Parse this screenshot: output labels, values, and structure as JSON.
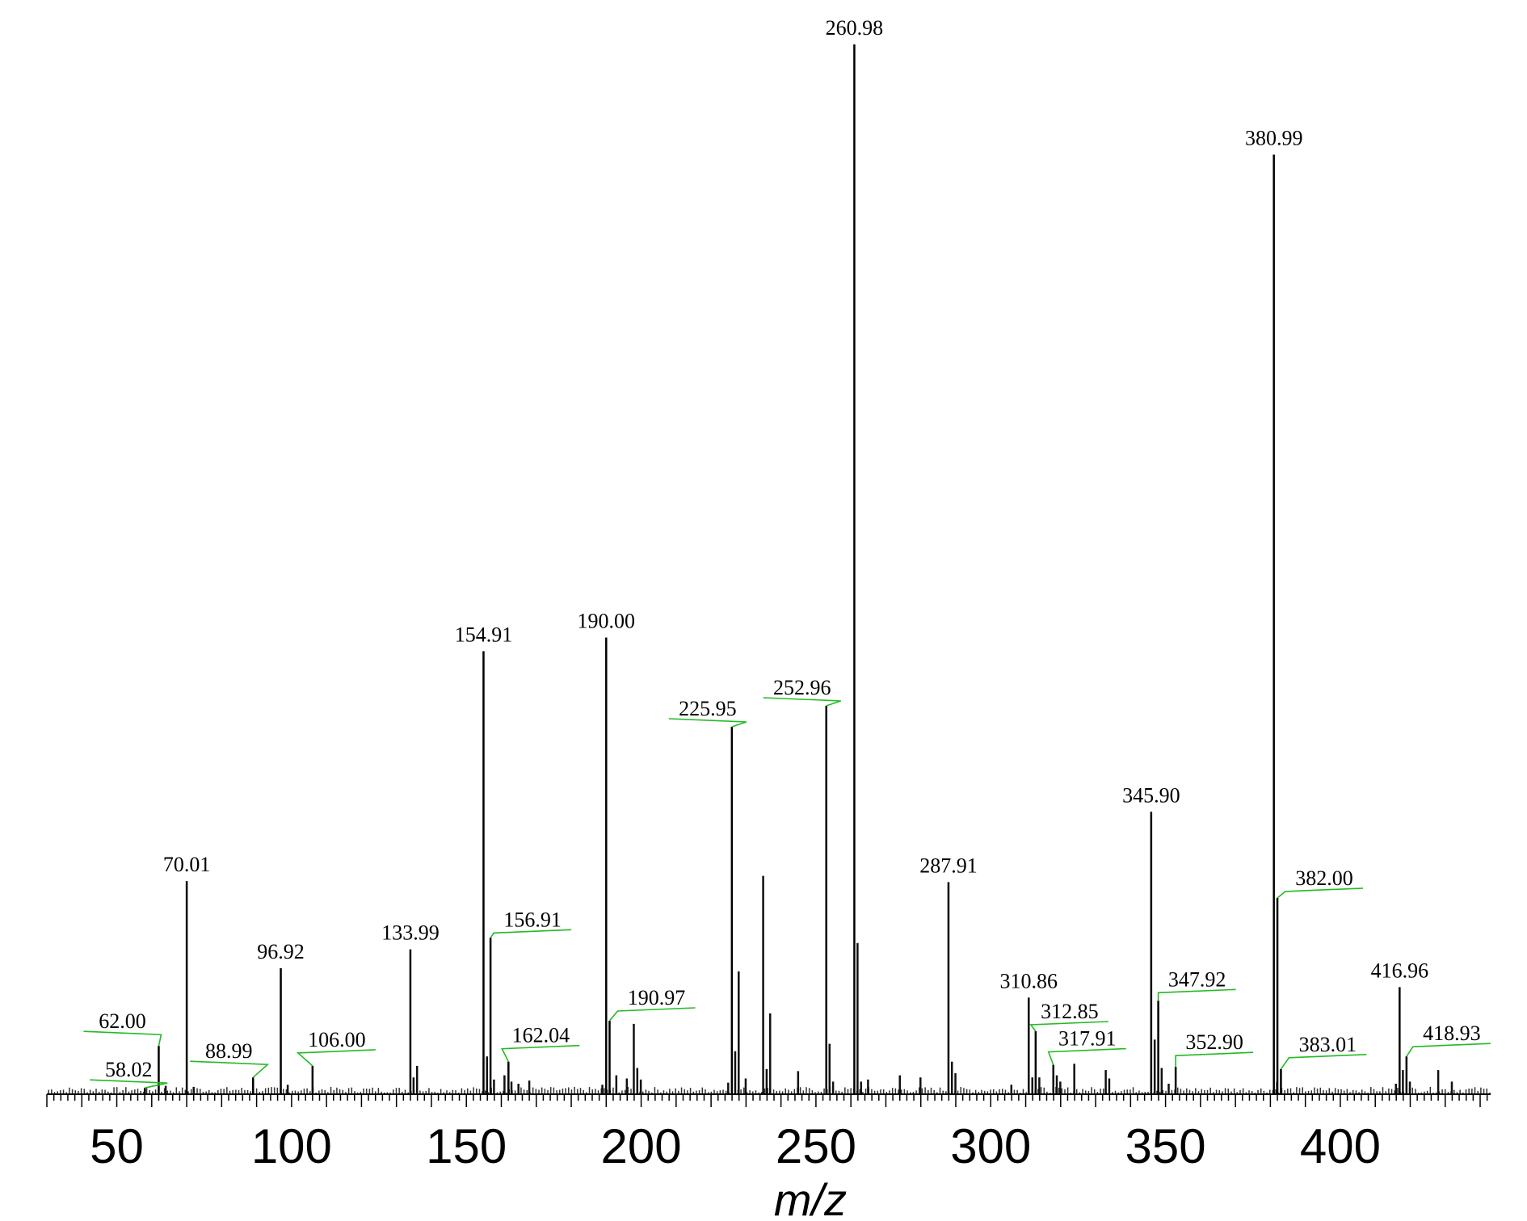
{
  "chart_data": {
    "type": "bar",
    "xlabel": "m/z",
    "ylabel": "",
    "xlim": [
      30,
      443
    ],
    "ylim": [
      0,
      100
    ],
    "x_ticks": [
      50,
      100,
      150,
      200,
      250,
      300,
      350,
      400
    ],
    "leader_color": "#22bb22",
    "labeled_peaks": [
      {
        "mz": 58.02,
        "label": "58.02",
        "intensity": 0.6
      },
      {
        "mz": 62.0,
        "label": "62.00",
        "intensity": 4.6
      },
      {
        "mz": 70.01,
        "label": "70.01",
        "intensity": 20.3
      },
      {
        "mz": 88.99,
        "label": "88.99",
        "intensity": 1.6
      },
      {
        "mz": 96.92,
        "label": "96.92",
        "intensity": 12.0
      },
      {
        "mz": 106.0,
        "label": "106.00",
        "intensity": 2.7
      },
      {
        "mz": 133.99,
        "label": "133.99",
        "intensity": 13.8
      },
      {
        "mz": 154.91,
        "label": "154.91",
        "intensity": 42.2
      },
      {
        "mz": 156.91,
        "label": "156.91",
        "intensity": 14.9
      },
      {
        "mz": 162.04,
        "label": "162.04",
        "intensity": 3.1
      },
      {
        "mz": 190.0,
        "label": "190.00",
        "intensity": 43.5
      },
      {
        "mz": 190.97,
        "label": "190.97",
        "intensity": 7.0
      },
      {
        "mz": 225.95,
        "label": "225.95",
        "intensity": 35.0
      },
      {
        "mz": 252.96,
        "label": "252.96",
        "intensity": 37.0
      },
      {
        "mz": 260.98,
        "label": "260.98",
        "intensity": 100
      },
      {
        "mz": 287.91,
        "label": "287.91",
        "intensity": 20.2
      },
      {
        "mz": 310.86,
        "label": "310.86",
        "intensity": 9.2
      },
      {
        "mz": 312.85,
        "label": "312.85",
        "intensity": 6.0
      },
      {
        "mz": 317.91,
        "label": "317.91",
        "intensity": 2.8
      },
      {
        "mz": 345.9,
        "label": "345.90",
        "intensity": 26.9
      },
      {
        "mz": 347.92,
        "label": "347.92",
        "intensity": 8.9
      },
      {
        "mz": 352.9,
        "label": "352.90",
        "intensity": 2.6
      },
      {
        "mz": 380.99,
        "label": "380.99",
        "intensity": 89.5
      },
      {
        "mz": 382.0,
        "label": "382.00",
        "intensity": 18.7
      },
      {
        "mz": 383.01,
        "label": "383.01",
        "intensity": 2.4
      },
      {
        "mz": 416.96,
        "label": "416.96",
        "intensity": 10.2
      },
      {
        "mz": 418.93,
        "label": "418.93",
        "intensity": 3.6
      }
    ],
    "minor_peaks": [
      {
        "mz": 64.0,
        "intensity": 0.8
      },
      {
        "mz": 72.0,
        "intensity": 0.7
      },
      {
        "mz": 98.9,
        "intensity": 0.9
      },
      {
        "mz": 134.9,
        "intensity": 1.6
      },
      {
        "mz": 135.9,
        "intensity": 2.7
      },
      {
        "mz": 155.9,
        "intensity": 3.6
      },
      {
        "mz": 157.9,
        "intensity": 1.4
      },
      {
        "mz": 160.9,
        "intensity": 1.8
      },
      {
        "mz": 162.9,
        "intensity": 1.2
      },
      {
        "mz": 164.9,
        "intensity": 1.0
      },
      {
        "mz": 168.0,
        "intensity": 1.3
      },
      {
        "mz": 188.9,
        "intensity": 0.9
      },
      {
        "mz": 192.9,
        "intensity": 1.8
      },
      {
        "mz": 195.9,
        "intensity": 1.5
      },
      {
        "mz": 197.9,
        "intensity": 6.7
      },
      {
        "mz": 198.9,
        "intensity": 2.5
      },
      {
        "mz": 199.9,
        "intensity": 1.4
      },
      {
        "mz": 224.9,
        "intensity": 1.1
      },
      {
        "mz": 226.9,
        "intensity": 4.1
      },
      {
        "mz": 227.9,
        "intensity": 11.7
      },
      {
        "mz": 229.9,
        "intensity": 1.5
      },
      {
        "mz": 234.9,
        "intensity": 20.8
      },
      {
        "mz": 235.9,
        "intensity": 2.4
      },
      {
        "mz": 236.9,
        "intensity": 7.7
      },
      {
        "mz": 244.9,
        "intensity": 2.2
      },
      {
        "mz": 253.9,
        "intensity": 4.8
      },
      {
        "mz": 254.9,
        "intensity": 1.2
      },
      {
        "mz": 261.9,
        "intensity": 14.4
      },
      {
        "mz": 262.9,
        "intensity": 1.2
      },
      {
        "mz": 264.9,
        "intensity": 1.4
      },
      {
        "mz": 274.0,
        "intensity": 1.8
      },
      {
        "mz": 279.9,
        "intensity": 1.6
      },
      {
        "mz": 288.9,
        "intensity": 3.1
      },
      {
        "mz": 289.9,
        "intensity": 2.0
      },
      {
        "mz": 305.9,
        "intensity": 0.9
      },
      {
        "mz": 311.9,
        "intensity": 1.6
      },
      {
        "mz": 313.9,
        "intensity": 1.6
      },
      {
        "mz": 318.9,
        "intensity": 1.8
      },
      {
        "mz": 319.9,
        "intensity": 1.2
      },
      {
        "mz": 323.9,
        "intensity": 2.9
      },
      {
        "mz": 332.9,
        "intensity": 2.3
      },
      {
        "mz": 333.9,
        "intensity": 1.5
      },
      {
        "mz": 346.9,
        "intensity": 5.2
      },
      {
        "mz": 348.9,
        "intensity": 2.5
      },
      {
        "mz": 350.9,
        "intensity": 1.0
      },
      {
        "mz": 381.9,
        "intensity": 1.2
      },
      {
        "mz": 415.9,
        "intensity": 1.0
      },
      {
        "mz": 417.9,
        "intensity": 2.3
      },
      {
        "mz": 419.9,
        "intensity": 1.2
      },
      {
        "mz": 428.0,
        "intensity": 2.3
      },
      {
        "mz": 431.9,
        "intensity": 1.2
      }
    ]
  }
}
